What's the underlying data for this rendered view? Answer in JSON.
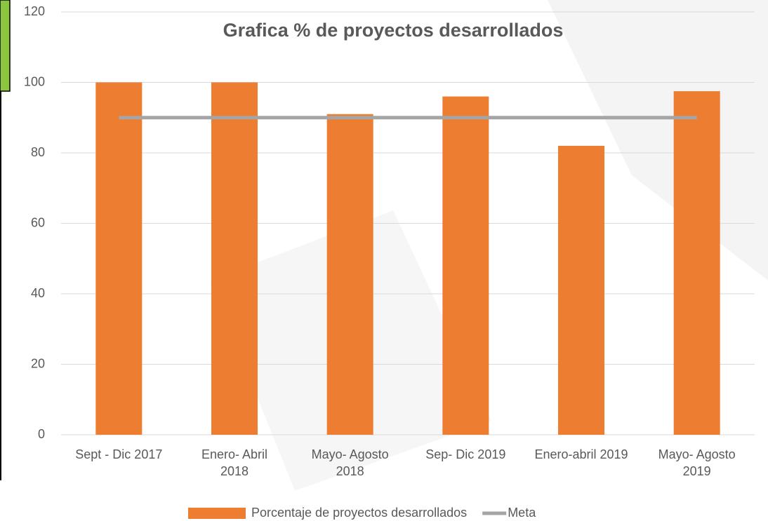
{
  "chart_data": {
    "type": "bar",
    "title": "Grafica % de proyectos desarrollados",
    "categories": [
      "Sept - Dic 2017",
      "Enero- Abril\n2018",
      "Mayo- Agosto\n2018",
      "Sep- Dic 2019",
      "Enero-abril 2019",
      "Mayo- Agosto\n2019"
    ],
    "series": [
      {
        "name": "Porcentaje de proyectos desarrollados",
        "type": "bar",
        "color": "#ed7d31",
        "values": [
          100,
          100,
          91,
          96,
          82,
          97.5
        ]
      },
      {
        "name": "Meta",
        "type": "line",
        "color": "#a5a5a5",
        "values": [
          90,
          90,
          90,
          90,
          90,
          90
        ]
      }
    ],
    "ylim": [
      0,
      120
    ],
    "yticks": [
      0,
      20,
      40,
      60,
      80,
      100,
      120
    ],
    "grid": true,
    "legend": "bottom"
  }
}
